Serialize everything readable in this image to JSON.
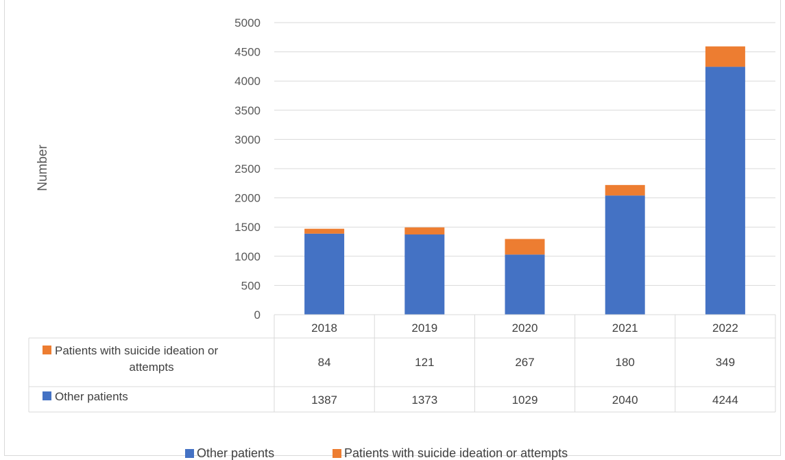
{
  "chart_data": {
    "type": "bar",
    "stacked": true,
    "categories": [
      "2018",
      "2019",
      "2020",
      "2021",
      "2022"
    ],
    "series": [
      {
        "name": "Other patients",
        "color": "#4472c4",
        "values": [
          1387,
          1373,
          1029,
          2040,
          4244
        ]
      },
      {
        "name": "Patients with suicide ideation or attempts",
        "color": "#ed7d31",
        "values": [
          84,
          121,
          267,
          180,
          349
        ]
      }
    ],
    "ylabel": "Number",
    "xlabel": "",
    "ylim": [
      0,
      5000
    ],
    "yticks": [
      0,
      500,
      1000,
      1500,
      2000,
      2500,
      3000,
      3500,
      4000,
      4500,
      5000
    ],
    "grid": true,
    "legend": "bottom",
    "data_table": true,
    "table_rows": [
      {
        "label_lines": [
          "Patients with suicide ideation or",
          "attempts"
        ],
        "series_index": 1
      },
      {
        "label_lines": [
          "Other patients"
        ],
        "series_index": 0
      }
    ]
  }
}
